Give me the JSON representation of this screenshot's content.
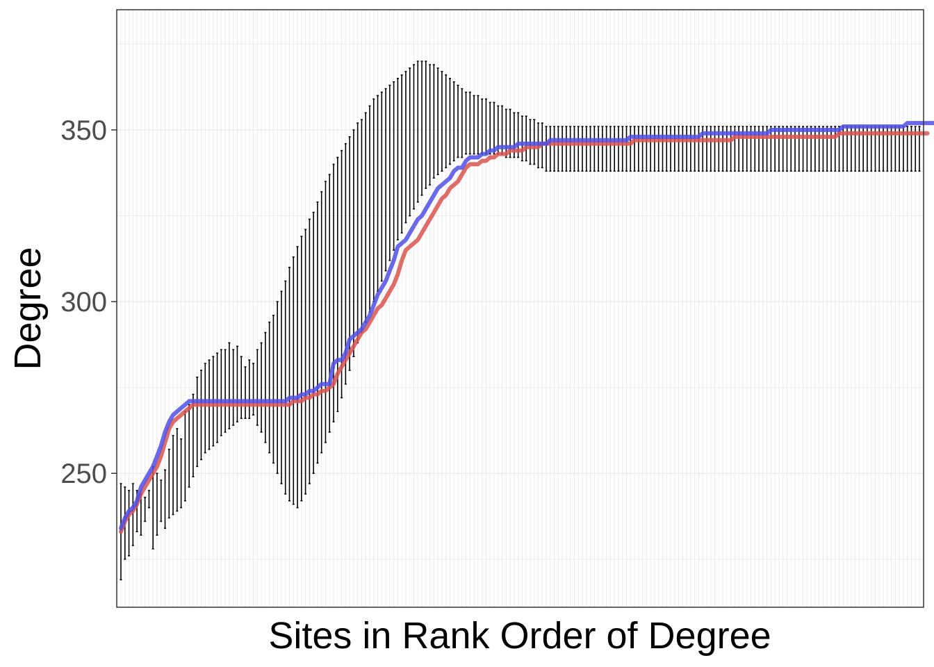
{
  "chart_data": {
    "type": "line",
    "title": "",
    "xlabel": "Sites in Rank Order of Degree",
    "ylabel": "Degree",
    "ylim": [
      211,
      385
    ],
    "yticks": [
      250,
      300,
      350
    ],
    "x_ticks_shown": false,
    "grid": true,
    "legend": "none",
    "n_sites": 200,
    "colors": {
      "red_series": "#d9534f",
      "blue_series": "#4f4fe6",
      "error_bars": "#000000",
      "grid": "#ebebeb"
    },
    "series": [
      {
        "color": "#d9534f",
        "values": [
          233,
          236,
          238,
          239,
          241,
          244,
          246,
          248,
          250,
          252,
          255,
          259,
          263,
          265,
          266,
          267,
          268,
          269,
          270,
          270,
          270,
          270,
          270,
          270,
          270,
          270,
          270,
          270,
          270,
          270,
          270,
          270,
          270,
          270,
          270,
          270,
          270,
          270,
          270,
          270,
          270,
          270,
          270,
          271,
          271,
          271,
          272,
          272,
          273,
          273,
          274,
          274,
          275,
          276,
          279,
          281,
          283,
          285,
          287,
          289,
          291,
          292,
          294,
          296,
          298,
          299,
          301,
          303,
          305,
          308,
          312,
          315,
          316,
          317,
          318,
          320,
          322,
          324,
          326,
          328,
          330,
          331,
          333,
          334,
          335,
          337,
          339,
          340,
          340,
          340,
          341,
          341,
          342,
          342,
          343,
          343,
          343,
          344,
          344,
          344,
          344,
          345,
          345,
          345,
          345,
          346,
          346,
          346,
          346,
          346,
          346,
          346,
          346,
          346,
          346,
          346,
          346,
          346,
          346,
          346,
          346,
          346,
          346,
          346,
          346,
          346,
          346,
          346,
          347,
          347,
          347,
          347,
          347,
          347,
          347,
          347,
          347,
          347,
          347,
          347,
          347,
          347,
          347,
          347,
          347,
          347,
          347,
          347,
          347,
          347,
          347,
          347,
          347,
          348,
          348,
          348,
          348,
          348,
          348,
          348,
          348,
          348,
          348,
          348,
          348,
          348,
          348,
          348,
          348,
          348,
          348,
          348,
          348,
          348,
          348,
          348,
          348,
          348,
          348,
          349,
          349,
          349,
          349,
          349,
          349,
          349,
          349,
          349,
          349,
          349,
          349,
          349,
          349,
          349,
          349,
          349,
          349,
          349,
          349,
          349,
          349,
          349
        ]
      },
      {
        "color": "#4f4fe6",
        "values": [
          234,
          237,
          239,
          240,
          242,
          246,
          248,
          250,
          252,
          255,
          258,
          262,
          265,
          267,
          268,
          269,
          270,
          271,
          271,
          271,
          271,
          271,
          271,
          271,
          271,
          271,
          271,
          271,
          271,
          271,
          271,
          271,
          271,
          271,
          271,
          271,
          271,
          271,
          271,
          271,
          271,
          271,
          272,
          272,
          272,
          273,
          273,
          274,
          274,
          275,
          276,
          276,
          276,
          282,
          283,
          283,
          285,
          289,
          290,
          291,
          292,
          294,
          296,
          299,
          302,
          304,
          306,
          309,
          312,
          316,
          317,
          318,
          320,
          322,
          324,
          325,
          327,
          329,
          331,
          333,
          334,
          335,
          336,
          338,
          339,
          339,
          341,
          342,
          342,
          342,
          343,
          343,
          344,
          344,
          345,
          345,
          345,
          345,
          345,
          346,
          346,
          346,
          346,
          346,
          346,
          346,
          346,
          347,
          347,
          347,
          347,
          347,
          347,
          347,
          347,
          347,
          347,
          347,
          347,
          347,
          347,
          347,
          347,
          347,
          347,
          347,
          347,
          348,
          348,
          348,
          348,
          348,
          348,
          348,
          348,
          348,
          348,
          348,
          348,
          348,
          348,
          348,
          348,
          348,
          348,
          349,
          349,
          349,
          349,
          349,
          349,
          349,
          349,
          349,
          349,
          349,
          349,
          349,
          349,
          349,
          349,
          349,
          350,
          350,
          350,
          350,
          350,
          350,
          350,
          350,
          350,
          350,
          350,
          350,
          350,
          350,
          350,
          350,
          350,
          350,
          351,
          351,
          351,
          351,
          351,
          351,
          351,
          351,
          351,
          351,
          351,
          351,
          351,
          351,
          351,
          351,
          352,
          352,
          352,
          352,
          352,
          352,
          352,
          352
        ]
      }
    ],
    "error_bars": [
      [
        219,
        247
      ],
      [
        225,
        246
      ],
      [
        226,
        245
      ],
      [
        229,
        247
      ],
      [
        233,
        245
      ],
      [
        232,
        244
      ],
      [
        236,
        243
      ],
      [
        240,
        245
      ],
      [
        228,
        252
      ],
      [
        232,
        250
      ],
      [
        236,
        248
      ],
      [
        234,
        251
      ],
      [
        237,
        257
      ],
      [
        238,
        261
      ],
      [
        239,
        263
      ],
      [
        240,
        260
      ],
      [
        242,
        268
      ],
      [
        246,
        270
      ],
      [
        249,
        273
      ],
      [
        252,
        278
      ],
      [
        254,
        280
      ],
      [
        256,
        282
      ],
      [
        257,
        283
      ],
      [
        258,
        284
      ],
      [
        259,
        285
      ],
      [
        261,
        286
      ],
      [
        262,
        286
      ],
      [
        263,
        288
      ],
      [
        264,
        286
      ],
      [
        265,
        287
      ],
      [
        266,
        284
      ],
      [
        266,
        281
      ],
      [
        266,
        283
      ],
      [
        267,
        282
      ],
      [
        264,
        286
      ],
      [
        262,
        288
      ],
      [
        259,
        291
      ],
      [
        256,
        294
      ],
      [
        253,
        296
      ],
      [
        250,
        300
      ],
      [
        247,
        303
      ],
      [
        244,
        306
      ],
      [
        242,
        310
      ],
      [
        241,
        313
      ],
      [
        240,
        316
      ],
      [
        242,
        319
      ],
      [
        244,
        321
      ],
      [
        247,
        324
      ],
      [
        250,
        326
      ],
      [
        253,
        329
      ],
      [
        256,
        332
      ],
      [
        259,
        335
      ],
      [
        262,
        337
      ],
      [
        265,
        340
      ],
      [
        268,
        342
      ],
      [
        272,
        344
      ],
      [
        276,
        346
      ],
      [
        280,
        348
      ],
      [
        284,
        350
      ],
      [
        288,
        352
      ],
      [
        291,
        353
      ],
      [
        294,
        355
      ],
      [
        297,
        357
      ],
      [
        300,
        359
      ],
      [
        303,
        360
      ],
      [
        306,
        361
      ],
      [
        309,
        362
      ],
      [
        312,
        363
      ],
      [
        315,
        364
      ],
      [
        318,
        365
      ],
      [
        320,
        366
      ],
      [
        323,
        367
      ],
      [
        325,
        368
      ],
      [
        327,
        369
      ],
      [
        329,
        370
      ],
      [
        331,
        370
      ],
      [
        333,
        370
      ],
      [
        334,
        369
      ],
      [
        336,
        369
      ],
      [
        337,
        368
      ],
      [
        338,
        367
      ],
      [
        339,
        366
      ],
      [
        340,
        365
      ],
      [
        341,
        364
      ],
      [
        342,
        363
      ],
      [
        342,
        362
      ],
      [
        343,
        361
      ],
      [
        343,
        361
      ],
      [
        343,
        360
      ],
      [
        343,
        360
      ],
      [
        343,
        359
      ],
      [
        343,
        359
      ],
      [
        343,
        358
      ],
      [
        343,
        358
      ],
      [
        343,
        357
      ],
      [
        343,
        357
      ],
      [
        342,
        356
      ],
      [
        342,
        356
      ],
      [
        342,
        355
      ],
      [
        342,
        355
      ],
      [
        341,
        354
      ],
      [
        341,
        354
      ],
      [
        340,
        353
      ],
      [
        340,
        353
      ],
      [
        339,
        352
      ],
      [
        339,
        352
      ],
      [
        338,
        351
      ],
      [
        338,
        351
      ],
      [
        338,
        351
      ],
      [
        338,
        351
      ],
      [
        338,
        351
      ],
      [
        338,
        351
      ],
      [
        338,
        351
      ],
      [
        338,
        351
      ],
      [
        338,
        351
      ],
      [
        338,
        351
      ],
      [
        338,
        351
      ],
      [
        338,
        351
      ],
      [
        338,
        351
      ],
      [
        338,
        351
      ],
      [
        338,
        351
      ],
      [
        338,
        351
      ],
      [
        338,
        351
      ],
      [
        338,
        351
      ],
      [
        338,
        351
      ],
      [
        338,
        351
      ],
      [
        338,
        351
      ],
      [
        338,
        351
      ],
      [
        338,
        351
      ],
      [
        338,
        351
      ],
      [
        338,
        351
      ],
      [
        338,
        351
      ],
      [
        338,
        351
      ],
      [
        338,
        351
      ],
      [
        338,
        351
      ],
      [
        338,
        351
      ],
      [
        338,
        351
      ],
      [
        338,
        351
      ],
      [
        338,
        351
      ],
      [
        338,
        351
      ],
      [
        338,
        351
      ],
      [
        338,
        351
      ],
      [
        338,
        351
      ],
      [
        338,
        351
      ],
      [
        338,
        351
      ],
      [
        338,
        351
      ],
      [
        338,
        351
      ],
      [
        338,
        351
      ],
      [
        338,
        351
      ],
      [
        338,
        351
      ],
      [
        338,
        351
      ],
      [
        338,
        351
      ],
      [
        338,
        351
      ],
      [
        338,
        351
      ],
      [
        338,
        351
      ],
      [
        338,
        351
      ],
      [
        338,
        351
      ],
      [
        338,
        351
      ],
      [
        338,
        351
      ],
      [
        338,
        351
      ],
      [
        338,
        351
      ],
      [
        338,
        351
      ],
      [
        338,
        351
      ],
      [
        338,
        351
      ],
      [
        338,
        351
      ],
      [
        338,
        351
      ],
      [
        338,
        351
      ],
      [
        338,
        351
      ],
      [
        338,
        351
      ],
      [
        338,
        351
      ],
      [
        338,
        351
      ],
      [
        338,
        351
      ],
      [
        338,
        351
      ],
      [
        338,
        351
      ],
      [
        338,
        351
      ],
      [
        338,
        351
      ],
      [
        338,
        351
      ],
      [
        338,
        351
      ],
      [
        338,
        351
      ],
      [
        338,
        351
      ],
      [
        338,
        351
      ],
      [
        338,
        351
      ],
      [
        338,
        351
      ],
      [
        338,
        351
      ],
      [
        338,
        351
      ],
      [
        338,
        351
      ],
      [
        338,
        351
      ],
      [
        338,
        351
      ],
      [
        338,
        351
      ],
      [
        338,
        351
      ],
      [
        338,
        351
      ],
      [
        338,
        351
      ],
      [
        338,
        351
      ],
      [
        338,
        351
      ],
      [
        338,
        351
      ],
      [
        338,
        351
      ],
      [
        338,
        351
      ],
      [
        338,
        351
      ],
      [
        338,
        351
      ],
      [
        338,
        351
      ]
    ]
  }
}
